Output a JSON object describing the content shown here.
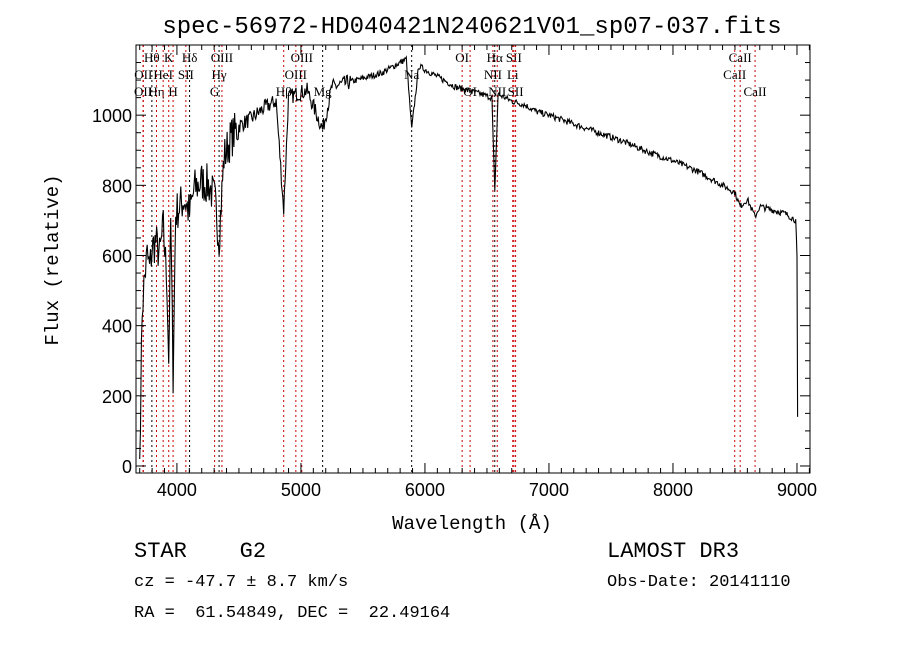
{
  "chart_data": {
    "type": "line",
    "title": "spec-56972-HD040421N240621V01_sp07-037.fits",
    "xlabel": "Wavelength (Å)",
    "ylabel": "Flux (relative)",
    "xlim": [
      3670,
      9105
    ],
    "ylim": [
      -20,
      1200
    ],
    "xticks": [
      4000,
      5000,
      6000,
      7000,
      8000,
      9000
    ],
    "yticks": [
      0,
      200,
      400,
      600,
      800,
      1000
    ],
    "grid": false,
    "series": [
      {
        "name": "spectrum",
        "x": [
          3700,
          3720,
          3740,
          3760,
          3780,
          3800,
          3830,
          3860,
          3890,
          3920,
          3934,
          3950,
          3969,
          3990,
          4020,
          4060,
          4102,
          4140,
          4200,
          4260,
          4304,
          4340,
          4380,
          4430,
          4500,
          4600,
          4700,
          4800,
          4861,
          4900,
          4960,
          5050,
          5175,
          5250,
          5350,
          5450,
          5550,
          5650,
          5750,
          5850,
          5893,
          5950,
          6050,
          6150,
          6250,
          6350,
          6450,
          6540,
          6563,
          6590,
          6700,
          6800,
          6900,
          7000,
          7200,
          7400,
          7600,
          7800,
          8000,
          8200,
          8400,
          8498,
          8542,
          8600,
          8662,
          8700,
          8800,
          8900,
          8950,
          8990,
          9000,
          9005
        ],
        "y": [
          20,
          450,
          540,
          600,
          560,
          620,
          640,
          600,
          680,
          520,
          300,
          700,
          260,
          720,
          740,
          760,
          720,
          790,
          810,
          800,
          760,
          650,
          880,
          930,
          970,
          990,
          1020,
          1040,
          730,
          1050,
          1060,
          1070,
          960,
          1080,
          1090,
          1100,
          1110,
          1120,
          1140,
          1160,
          960,
          1140,
          1120,
          1100,
          1080,
          1070,
          1060,
          1050,
          780,
          1060,
          1040,
          1030,
          1010,
          1000,
          975,
          950,
          925,
          895,
          870,
          840,
          800,
          780,
          740,
          760,
          710,
          740,
          730,
          720,
          710,
          700,
          590,
          140
        ]
      }
    ],
    "lines": [
      {
        "label": "OII",
        "wave": 3727,
        "tier": 3,
        "color": "#cc0000"
      },
      {
        "label": "Hθ",
        "wave": 3798,
        "tier": 1,
        "color": "#000000"
      },
      {
        "label": "OII",
        "wave": 3729,
        "tier": 2,
        "color": "#cc0000"
      },
      {
        "label": "Hη",
        "wave": 3835,
        "tier": 3,
        "color": "#cc0000"
      },
      {
        "label": "HeI",
        "wave": 3889,
        "tier": 2,
        "color": "#cc0000"
      },
      {
        "label": "K",
        "wave": 3934,
        "tier": 1,
        "color": "#cc0000"
      },
      {
        "label": "H",
        "wave": 3969,
        "tier": 3,
        "color": "#cc0000"
      },
      {
        "label": "SII",
        "wave": 4072,
        "tier": 2,
        "color": "#cc0000"
      },
      {
        "label": "Hδ",
        "wave": 4102,
        "tier": 1,
        "color": "#000000"
      },
      {
        "label": "G",
        "wave": 4304,
        "tier": 3,
        "color": "#cc0000"
      },
      {
        "label": "Hγ",
        "wave": 4340,
        "tier": 2,
        "color": "#000000"
      },
      {
        "label": "OIII",
        "wave": 4363,
        "tier": 1,
        "color": "#cc0000"
      },
      {
        "label": "Hβ",
        "wave": 4861,
        "tier": 3,
        "color": "#cc0000"
      },
      {
        "label": "OIII",
        "wave": 4959,
        "tier": 2,
        "color": "#cc0000"
      },
      {
        "label": "OIII",
        "wave": 5007,
        "tier": 1,
        "color": "#cc0000"
      },
      {
        "label": "Mg",
        "wave": 5175,
        "tier": 3,
        "color": "#000000"
      },
      {
        "label": "Na",
        "wave": 5893,
        "tier": 2,
        "color": "#000000"
      },
      {
        "label": "OI",
        "wave": 6300,
        "tier": 1,
        "color": "#cc0000"
      },
      {
        "label": "OI",
        "wave": 6364,
        "tier": 3,
        "color": "#cc0000"
      },
      {
        "label": "NII",
        "wave": 6548,
        "tier": 2,
        "color": "#cc0000"
      },
      {
        "label": "Hα",
        "wave": 6563,
        "tier": 1,
        "color": "#000000"
      },
      {
        "label": "NII",
        "wave": 6583,
        "tier": 3,
        "color": "#cc0000"
      },
      {
        "label": "Li",
        "wave": 6708,
        "tier": 2,
        "color": "#cc0000"
      },
      {
        "label": "SII",
        "wave": 6717,
        "tier": 1,
        "color": "#cc0000"
      },
      {
        "label": "SII",
        "wave": 6731,
        "tier": 3,
        "color": "#cc0000"
      },
      {
        "label": "CaII",
        "wave": 8498,
        "tier": 2,
        "color": "#cc0000"
      },
      {
        "label": "CaII",
        "wave": 8542,
        "tier": 1,
        "color": "#cc0000"
      },
      {
        "label": "CaII",
        "wave": 8662,
        "tier": 3,
        "color": "#cc0000"
      }
    ]
  },
  "info": {
    "class": "STAR    G2",
    "survey": "LAMOST DR3",
    "cz": "cz = -47.7 ± 8.7 km/s",
    "obs_date": "Obs-Date: 20141110",
    "coords": "RA =  61.54849, DEC =  22.49164"
  }
}
